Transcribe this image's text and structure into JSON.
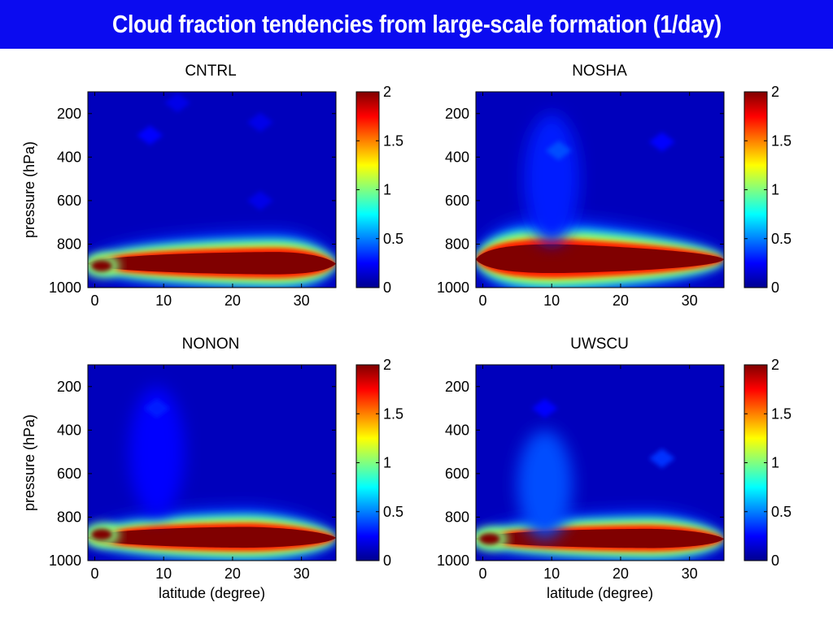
{
  "page": {
    "title": "Cloud fraction tendencies from large-scale formation (1/day)"
  },
  "colors": {
    "banner": "#0b0bf0",
    "colormap": "jet",
    "colormap_stops": [
      "#00008f",
      "#0000ff",
      "#0080ff",
      "#00ffff",
      "#80ff80",
      "#ffff00",
      "#ff8000",
      "#ff0000",
      "#800000"
    ]
  },
  "chart_data": [
    {
      "type": "heatmap",
      "title": "CNTRL",
      "xlabel": "",
      "ylabel": "pressure (hPa)",
      "xlim": [
        -1,
        35
      ],
      "ylim": [
        1000,
        100
      ],
      "xticks": [
        0,
        10,
        20,
        30
      ],
      "yticks": [
        200,
        400,
        600,
        800,
        1000
      ],
      "colorbar": {
        "range": [
          0,
          2
        ],
        "ticks": [
          "0",
          "0.5",
          "1",
          "1.5",
          "2"
        ]
      },
      "features": [
        {
          "kind": "band",
          "latitude": [
            -1,
            35
          ],
          "pressure": [
            820,
            960
          ],
          "value": 2.0,
          "peak_latitude": 26
        },
        {
          "kind": "blob",
          "latitude": 1,
          "pressure": 900,
          "value": 2.0
        },
        {
          "kind": "blob",
          "latitude": 8,
          "pressure": 300,
          "value": 0.25
        },
        {
          "kind": "blob",
          "latitude": 12,
          "pressure": 150,
          "value": 0.2
        },
        {
          "kind": "blob",
          "latitude": 24,
          "pressure": 240,
          "value": 0.2
        },
        {
          "kind": "blob",
          "latitude": 24,
          "pressure": 600,
          "value": 0.2
        }
      ]
    },
    {
      "type": "heatmap",
      "title": "NOSHA",
      "xlabel": "",
      "ylabel": "",
      "xlim": [
        -1,
        35
      ],
      "ylim": [
        1000,
        100
      ],
      "xticks": [
        0,
        10,
        20,
        30
      ],
      "yticks": [
        200,
        400,
        600,
        800,
        1000
      ],
      "colorbar": {
        "range": [
          0,
          2
        ],
        "ticks": [
          "0",
          "0.5",
          "1",
          "1.5",
          "2"
        ]
      },
      "features": [
        {
          "kind": "band",
          "latitude": [
            -1,
            35
          ],
          "pressure": [
            780,
            960
          ],
          "value": 2.0,
          "peak_latitude": 10
        },
        {
          "kind": "plume",
          "latitude": 10,
          "pressure": [
            200,
            800
          ],
          "value": 0.3
        },
        {
          "kind": "blob",
          "latitude": 11,
          "pressure": 370,
          "value": 0.4
        },
        {
          "kind": "blob",
          "latitude": 26,
          "pressure": 330,
          "value": 0.25
        }
      ]
    },
    {
      "type": "heatmap",
      "title": "NONON",
      "xlabel": "latitude (degree)",
      "ylabel": "pressure (hPa)",
      "xlim": [
        -1,
        35
      ],
      "ylim": [
        1000,
        100
      ],
      "xticks": [
        0,
        10,
        20,
        30
      ],
      "yticks": [
        200,
        400,
        600,
        800,
        1000
      ],
      "colorbar": {
        "range": [
          0,
          2
        ],
        "ticks": [
          "0",
          "0.5",
          "1",
          "1.5",
          "2"
        ]
      },
      "features": [
        {
          "kind": "band",
          "latitude": [
            -1,
            35
          ],
          "pressure": [
            830,
            960
          ],
          "value": 2.0,
          "peak_latitude": 22
        },
        {
          "kind": "blob",
          "latitude": 1,
          "pressure": 880,
          "value": 2.0
        },
        {
          "kind": "plume",
          "latitude": 9,
          "pressure": [
            200,
            800
          ],
          "value": 0.25
        },
        {
          "kind": "blob",
          "latitude": 9,
          "pressure": 300,
          "value": 0.3
        }
      ]
    },
    {
      "type": "heatmap",
      "title": "UWSCU",
      "xlabel": "latitude (degree)",
      "ylabel": "",
      "xlim": [
        -1,
        35
      ],
      "ylim": [
        1000,
        100
      ],
      "xticks": [
        0,
        10,
        20,
        30
      ],
      "yticks": [
        200,
        400,
        600,
        800,
        1000
      ],
      "colorbar": {
        "range": [
          0,
          2
        ],
        "ticks": [
          "0",
          "0.5",
          "1",
          "1.5",
          "2"
        ]
      },
      "features": [
        {
          "kind": "band",
          "latitude": [
            -1,
            35
          ],
          "pressure": [
            840,
            960
          ],
          "value": 2.0,
          "peak_latitude": 24
        },
        {
          "kind": "blob",
          "latitude": 1,
          "pressure": 900,
          "value": 2.0
        },
        {
          "kind": "plume",
          "latitude": 9,
          "pressure": [
            400,
            900
          ],
          "value": 0.4
        },
        {
          "kind": "blob",
          "latitude": 9,
          "pressure": 300,
          "value": 0.25
        },
        {
          "kind": "blob",
          "latitude": 26,
          "pressure": 530,
          "value": 0.35
        }
      ]
    }
  ]
}
